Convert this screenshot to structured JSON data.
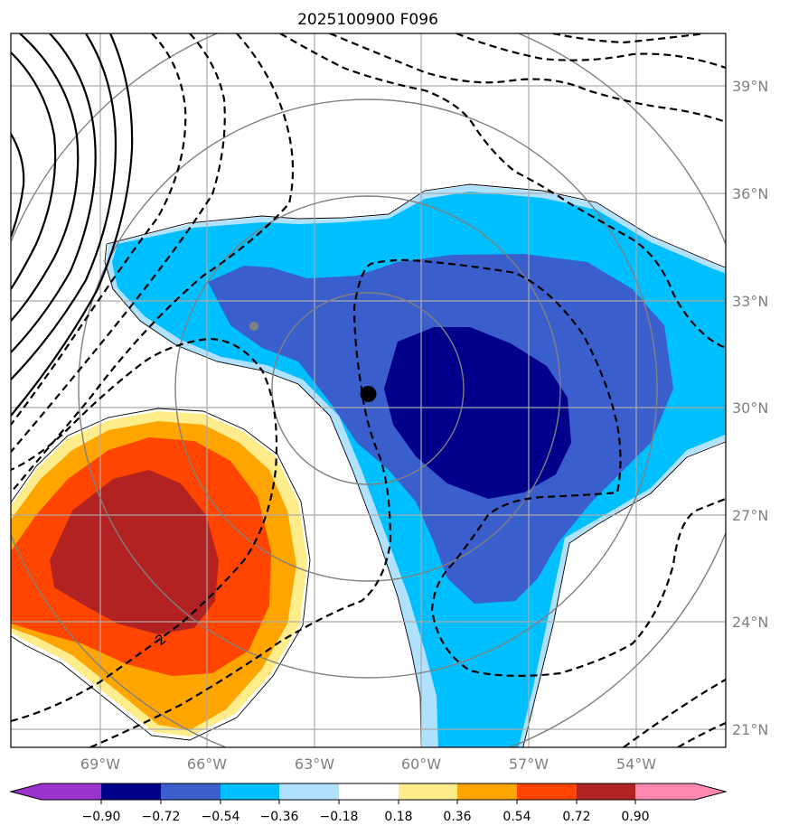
{
  "chart_data": {
    "type": "contour-map",
    "title": "2025100900 F096",
    "lon_range": [
      -71.5,
      -51.5
    ],
    "lat_range": [
      20.5,
      40.5
    ],
    "x_ticks": [
      {
        "value": -69,
        "label": "69°W"
      },
      {
        "value": -66,
        "label": "66°W"
      },
      {
        "value": -63,
        "label": "63°W"
      },
      {
        "value": -60,
        "label": "60°W"
      },
      {
        "value": -57,
        "label": "57°W"
      },
      {
        "value": -54,
        "label": "54°W"
      }
    ],
    "y_ticks": [
      {
        "value": 21,
        "label": "21°N"
      },
      {
        "value": 24,
        "label": "24°N"
      },
      {
        "value": 27,
        "label": "27°N"
      },
      {
        "value": 30,
        "label": "30°N"
      },
      {
        "value": 33,
        "label": "33°N"
      },
      {
        "value": 36,
        "label": "36°N"
      },
      {
        "value": 39,
        "label": "39°N"
      }
    ],
    "grid": true,
    "storm_center": {
      "lon": -61.5,
      "lat": 30.4
    },
    "secondary_marker": {
      "lon": -64.7,
      "lat": 32.3
    },
    "range_rings_center": {
      "lon": -61.5,
      "lat": 30.5
    },
    "contour_label": "2",
    "colorbar": {
      "levels": [
        -0.9,
        -0.72,
        -0.54,
        -0.36,
        -0.18,
        0.18,
        0.36,
        0.54,
        0.72,
        0.9
      ],
      "tick_labels": [
        "−0.90",
        "−0.72",
        "−0.54",
        "−0.36",
        "−0.18",
        "0.18",
        "0.36",
        "0.54",
        "0.72",
        "0.90"
      ],
      "colors": [
        "#9933cc",
        "#00008b",
        "#3a5fcd",
        "#00bfff",
        "#b0e2ff",
        "#ffffff",
        "#ffec8b",
        "#ffa500",
        "#ff4500",
        "#b22222",
        "#ff88b0"
      ]
    }
  }
}
